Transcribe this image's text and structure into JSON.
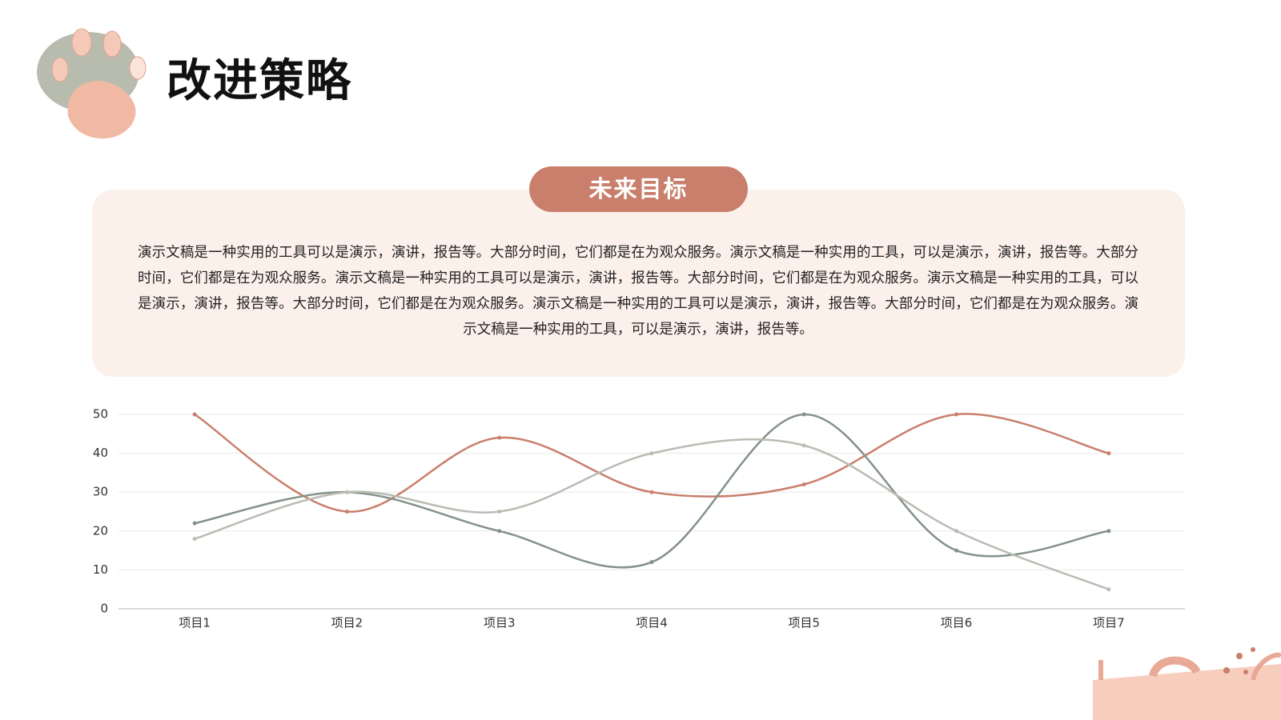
{
  "title": "改进策略",
  "badge": "未来目标",
  "paragraph": "演示文稿是一种实用的工具可以是演示，演讲，报告等。大部分时间，它们都是在为观众服务。演示文稿是一种实用的工具，可以是演示，演讲，报告等。大部分时间，它们都是在为观众服务。演示文稿是一种实用的工具可以是演示，演讲，报告等。大部分时间，它们都是在为观众服务。演示文稿是一种实用的工具，可以是演示，演讲，报告等。大部分时间，它们都是在为观众服务。演示文稿是一种实用的工具可以是演示，演讲，报告等。大部分时间，它们都是在为观众服务。演示文稿是一种实用的工具，可以是演示，演讲，报告等。",
  "chart_data": {
    "type": "line",
    "smooth": true,
    "categories": [
      "项目1",
      "项目2",
      "项目3",
      "项目4",
      "项目5",
      "项目6",
      "项目7"
    ],
    "series": [
      {
        "color": "#c97f6b",
        "values": [
          50,
          25,
          44,
          30,
          32,
          50,
          40
        ]
      },
      {
        "color": "#84928a",
        "values": [
          22,
          30,
          20,
          12,
          50,
          15,
          20
        ]
      },
      {
        "color": "#babcb3",
        "values": [
          18,
          30,
          25,
          40,
          42,
          20,
          5
        ]
      }
    ],
    "ylim": [
      0,
      50
    ],
    "yticks": [
      0,
      10,
      20,
      30,
      40,
      50
    ],
    "grid": true
  }
}
